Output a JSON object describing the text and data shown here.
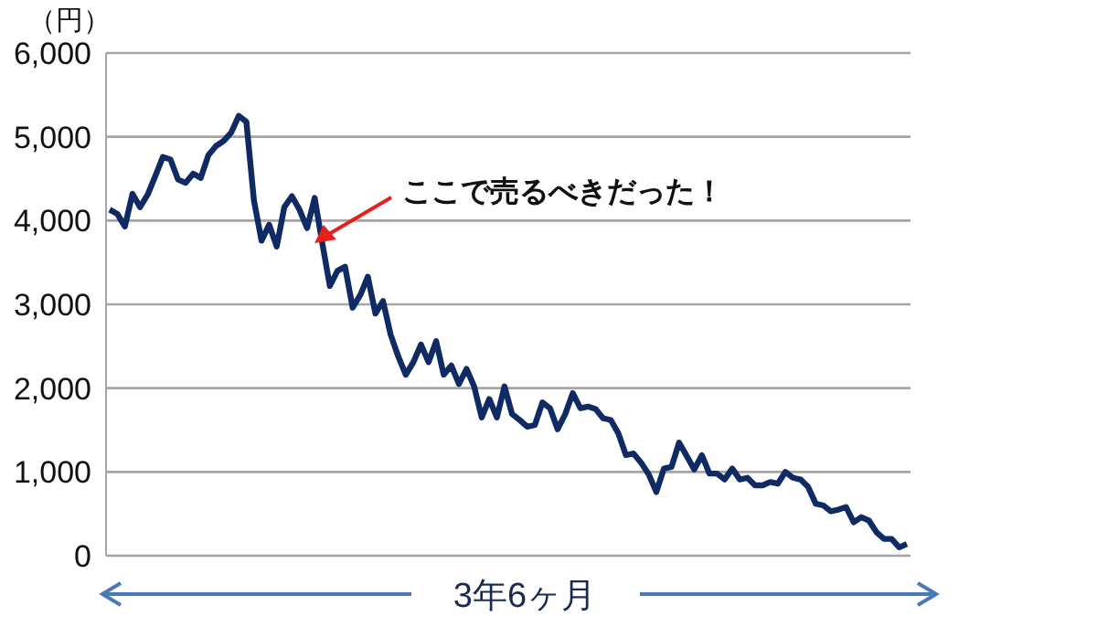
{
  "chart_data": {
    "type": "line",
    "ylabel": "（円）",
    "xlabel": "3年6ヶ月",
    "annotations": [
      "ここで売るべきだった！"
    ],
    "categories": [
      null,
      null,
      null,
      null,
      null,
      null,
      null,
      null,
      null,
      null,
      null,
      null,
      null,
      null,
      null,
      null,
      null,
      null,
      null,
      null,
      null,
      null,
      null,
      null,
      null,
      null,
      null,
      null,
      null,
      null,
      null,
      null,
      null,
      null,
      null,
      null,
      null,
      null,
      null,
      null,
      null,
      null,
      null,
      null,
      null,
      null,
      null,
      null,
      null,
      null,
      null,
      null,
      null,
      null,
      null,
      null,
      null,
      null,
      null,
      null,
      null,
      null,
      null,
      null,
      null,
      null,
      null,
      null,
      null,
      null,
      null,
      null,
      null,
      null,
      null,
      null,
      null,
      null,
      null,
      null,
      null,
      null,
      null,
      null,
      null,
      null,
      null,
      null,
      null,
      null,
      null,
      null,
      null,
      null,
      null,
      null,
      null,
      null,
      null,
      null,
      null,
      null,
      null,
      null,
      null,
      null
    ],
    "series": [
      {
        "color": "#102a63",
        "values": [
          4130,
          4080,
          3930,
          4320,
          4160,
          4310,
          4530,
          4760,
          4730,
          4490,
          4450,
          4560,
          4510,
          4780,
          4890,
          4950,
          5050,
          5250,
          5180,
          4240,
          3760,
          3950,
          3690,
          4160,
          4290,
          4130,
          3910,
          4270,
          3730,
          3220,
          3400,
          3450,
          2960,
          3110,
          3330,
          2890,
          3040,
          2640,
          2380,
          2160,
          2310,
          2520,
          2310,
          2560,
          2160,
          2270,
          2050,
          2230,
          2020,
          1650,
          1870,
          1650,
          2020,
          1690,
          1620,
          1540,
          1560,
          1830,
          1760,
          1510,
          1690,
          1940,
          1760,
          1780,
          1750,
          1640,
          1620,
          1460,
          1200,
          1220,
          1110,
          970,
          760,
          1040,
          1060,
          1350,
          1190,
          1030,
          1200,
          980,
          980,
          910,
          1040,
          910,
          930,
          840,
          840,
          880,
          860,
          1000,
          930,
          910,
          820,
          620,
          600,
          530,
          550,
          580,
          400,
          460,
          420,
          280,
          200,
          200,
          100,
          140
        ]
      }
    ],
    "ylim": [
      0,
      6000
    ],
    "yticks": [
      {
        "value": 0,
        "label": "0"
      },
      {
        "value": 1000,
        "label": "1,000"
      },
      {
        "value": 2000,
        "label": "2,000"
      },
      {
        "value": 3000,
        "label": "3,000"
      },
      {
        "value": 4000,
        "label": "4,000"
      },
      {
        "value": 5000,
        "label": "5,000"
      },
      {
        "value": 6000,
        "label": "6,000"
      }
    ],
    "grid": "y",
    "legend": false,
    "marker": "none",
    "line_style": "solid"
  }
}
